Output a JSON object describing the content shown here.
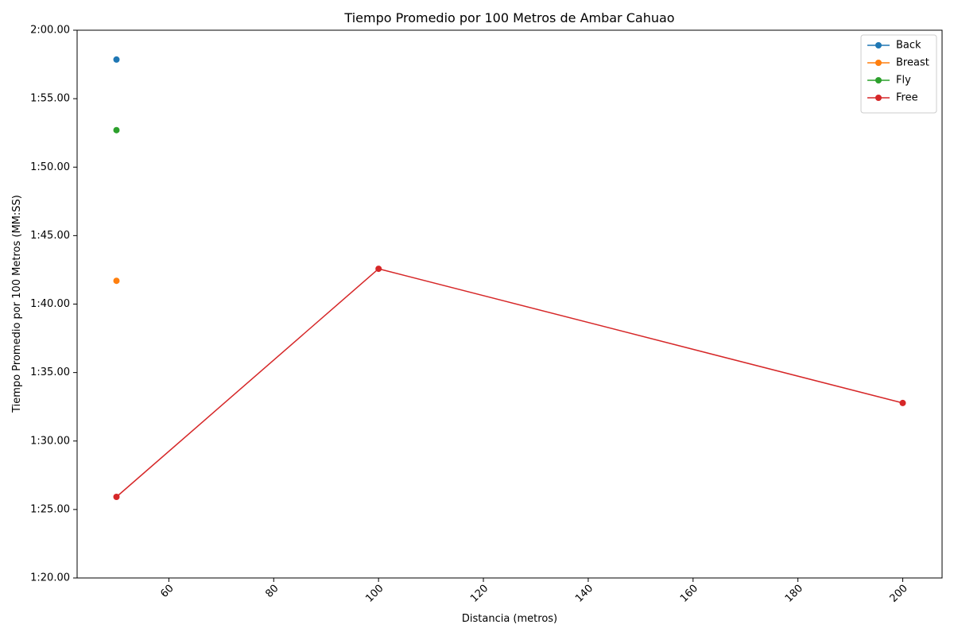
{
  "chart_data": {
    "type": "line",
    "title": "Tiempo Promedio por 100 Metros de Ambar Cahuao",
    "xlabel": "Distancia (metros)",
    "ylabel": "Tiempo Promedio por 100 Metros (MM:SS)",
    "xlim": [
      42.5,
      207.5
    ],
    "ylim": [
      80,
      120
    ],
    "x_ticks": [
      {
        "value": 60,
        "label": "60"
      },
      {
        "value": 80,
        "label": "80"
      },
      {
        "value": 100,
        "label": "100"
      },
      {
        "value": 120,
        "label": "120"
      },
      {
        "value": 140,
        "label": "140"
      },
      {
        "value": 160,
        "label": "160"
      },
      {
        "value": 180,
        "label": "180"
      },
      {
        "value": 200,
        "label": "200"
      }
    ],
    "y_ticks": [
      {
        "value": 80,
        "label": "1:20.00"
      },
      {
        "value": 85,
        "label": "1:25.00"
      },
      {
        "value": 90,
        "label": "1:30.00"
      },
      {
        "value": 95,
        "label": "1:35.00"
      },
      {
        "value": 100,
        "label": "1:40.00"
      },
      {
        "value": 105,
        "label": "1:45.00"
      },
      {
        "value": 110,
        "label": "1:50.00"
      },
      {
        "value": 115,
        "label": "1:55.00"
      },
      {
        "value": 120,
        "label": "2:00.00"
      }
    ],
    "x_tick_rotation": 45,
    "grid": false,
    "legend_position": "top-right",
    "series": [
      {
        "name": "Back",
        "color": "#1f77b4",
        "x": [
          50
        ],
        "y": [
          117.86
        ]
      },
      {
        "name": "Breast",
        "color": "#ff7f0e",
        "x": [
          50
        ],
        "y": [
          101.7
        ]
      },
      {
        "name": "Fly",
        "color": "#2ca02c",
        "x": [
          50
        ],
        "y": [
          112.7
        ]
      },
      {
        "name": "Free",
        "color": "#d62728",
        "x": [
          50,
          100,
          200
        ],
        "y": [
          85.92,
          102.58,
          92.78
        ]
      }
    ]
  }
}
